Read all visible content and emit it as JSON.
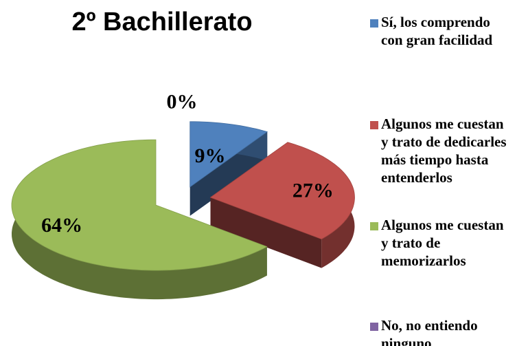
{
  "chart_data": {
    "type": "pie",
    "title": "2º Bachillerato",
    "categories": [
      "Sí, los comprendo con gran facilidad",
      "Algunos me cuestan y trato de dedicarles más tiempo hasta entenderlos",
      "Algunos me cuestan y trato de memorizarlos",
      "No, no entiendo ninguno"
    ],
    "values": [
      9,
      27,
      64,
      0
    ],
    "value_labels": [
      "9%",
      "27%",
      "64%",
      "0%"
    ],
    "colors": [
      "#4f81bd",
      "#c0504d",
      "#9bbb59",
      "#8064a2"
    ],
    "legend": "right"
  }
}
